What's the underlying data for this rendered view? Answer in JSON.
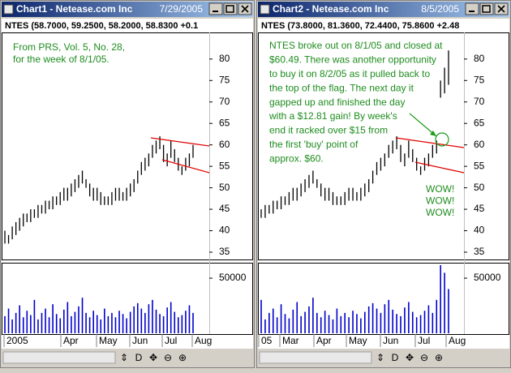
{
  "windows": [
    {
      "title": "Chart1 - Netease.com Inc",
      "date": "7/29/2005",
      "info": "NTES (58.7000, 59.2500, 58.2000, 58.8300 +0.1",
      "price": {
        "ylim": [
          33.3,
          86.2
        ],
        "yticks": [
          35,
          40,
          45,
          50,
          55,
          60,
          65,
          70,
          75,
          80
        ],
        "high": [
          40,
          39,
          41,
          42,
          43,
          44,
          44,
          45,
          45,
          46,
          46,
          47,
          47,
          48,
          48,
          49,
          50,
          50,
          51,
          52,
          53,
          54,
          52,
          51,
          50,
          50,
          49,
          48,
          48,
          49,
          50,
          50,
          49,
          50,
          51,
          52,
          54,
          56,
          57,
          58,
          60,
          61,
          62,
          60,
          58,
          61,
          59,
          57,
          55,
          57,
          58,
          60
        ],
        "low": [
          37,
          37,
          38,
          39,
          40,
          41,
          42,
          42,
          43,
          43,
          44,
          44,
          45,
          45,
          46,
          46,
          47,
          47,
          48,
          49,
          50,
          51,
          50,
          48,
          47,
          47,
          46,
          46,
          46,
          46,
          47,
          47,
          47,
          47,
          48,
          49,
          51,
          53,
          54,
          55,
          57,
          58,
          59,
          56,
          55,
          57,
          56,
          54,
          53,
          54,
          55,
          57
        ],
        "color": "#000000"
      },
      "volume": {
        "ylim": [
          0,
          62000
        ],
        "yticks": [
          50000
        ],
        "color": "#0000cc",
        "values": [
          15000,
          22000,
          12000,
          18000,
          25000,
          14000,
          20000,
          16000,
          30000,
          12000,
          18000,
          22000,
          14000,
          26000,
          17000,
          13000,
          21000,
          28000,
          15000,
          19000,
          24000,
          32000,
          18000,
          14000,
          20000,
          16000,
          12000,
          22000,
          15000,
          18000,
          14000,
          20000,
          17000,
          13000,
          19000,
          24000,
          27000,
          22000,
          18000,
          26000,
          30000,
          21000,
          17000,
          15000,
          23000,
          28000,
          19000,
          14000,
          16000,
          20000,
          25000,
          18000
        ]
      },
      "months": [
        "2005",
        "Apr",
        "May",
        "Jun",
        "Jul",
        "Aug"
      ],
      "note": [
        "From PRS, Vol. 5, No. 28,",
        "for the week of 8/1/05."
      ],
      "toolbar": [
        "⇕",
        "D",
        "✥",
        "⊖",
        "⊕"
      ]
    },
    {
      "title": "Chart2 - Netease.com Inc",
      "date": "8/5/2005",
      "info": "NTES (73.8000, 81.3600, 72.4400, 75.8600 +2.48",
      "price": {
        "ylim": [
          33.3,
          86.2
        ],
        "yticks": [
          35,
          40,
          45,
          50,
          55,
          60,
          65,
          70,
          75,
          80
        ],
        "high": [
          45,
          46,
          46,
          47,
          47,
          48,
          48,
          49,
          50,
          50,
          51,
          52,
          53,
          54,
          52,
          51,
          50,
          50,
          49,
          48,
          48,
          49,
          50,
          50,
          49,
          50,
          51,
          52,
          54,
          56,
          57,
          58,
          60,
          61,
          62,
          60,
          58,
          61,
          59,
          57,
          55,
          57,
          58,
          60,
          61,
          75,
          78,
          82
        ],
        "low": [
          43,
          43,
          44,
          44,
          45,
          45,
          46,
          46,
          47,
          47,
          48,
          49,
          50,
          51,
          50,
          48,
          47,
          47,
          46,
          46,
          46,
          46,
          47,
          47,
          47,
          47,
          48,
          49,
          51,
          53,
          54,
          55,
          57,
          58,
          59,
          56,
          55,
          57,
          56,
          54,
          53,
          54,
          55,
          57,
          58,
          71,
          72,
          74
        ],
        "color": "#000000"
      },
      "volume": {
        "ylim": [
          0,
          62000
        ],
        "yticks": [
          50000
        ],
        "color": "#0000cc",
        "values": [
          30000,
          12000,
          18000,
          22000,
          14000,
          26000,
          17000,
          13000,
          21000,
          28000,
          15000,
          19000,
          24000,
          32000,
          18000,
          14000,
          20000,
          16000,
          12000,
          22000,
          15000,
          18000,
          14000,
          20000,
          17000,
          13000,
          19000,
          24000,
          27000,
          22000,
          18000,
          26000,
          30000,
          21000,
          17000,
          15000,
          23000,
          28000,
          19000,
          14000,
          16000,
          20000,
          25000,
          18000,
          30000,
          62000,
          55000,
          40000
        ]
      },
      "months": [
        "05",
        "Mar",
        "Apr",
        "May",
        "Jun",
        "Jul",
        "Aug"
      ],
      "note": [
        "NTES broke out on 8/1/05 and closed at",
        "$60.49.  There was another opportunity",
        "to buy it on 8/2/05 as it pulled back to",
        "the top of the flag. The next day it",
        "gapped up and finished the day",
        "with a $12.81 gain! By week's",
        "end it racked over $15 from",
        "the first 'buy' point of",
        "approx. $60."
      ],
      "shout": [
        "WOW!",
        "WOW!",
        "WOW!"
      ],
      "toolbar": [
        "⇕",
        "D",
        "✥",
        "⊖",
        "⊕"
      ]
    }
  ]
}
